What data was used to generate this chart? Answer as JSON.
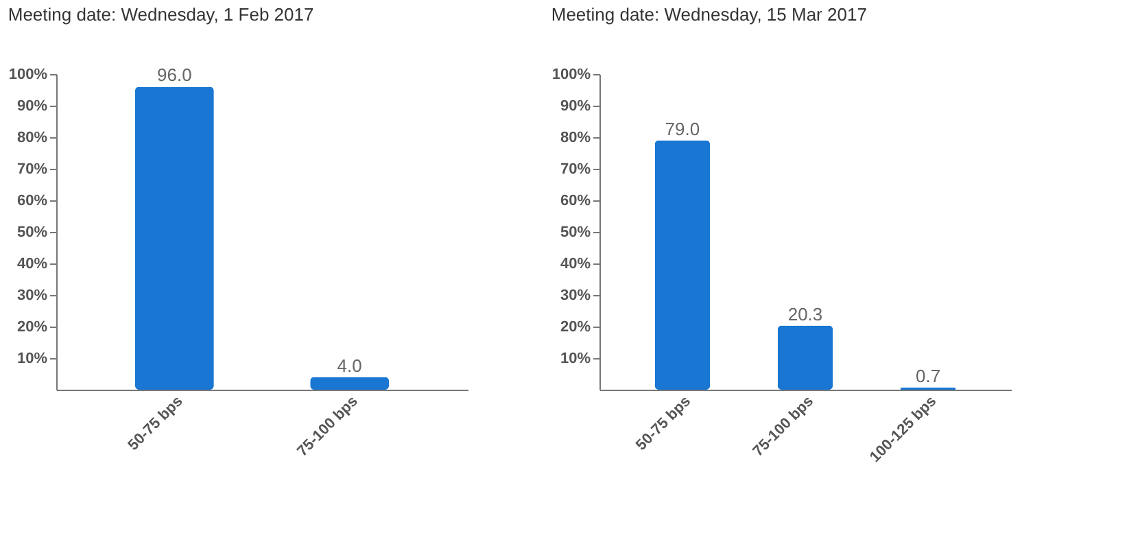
{
  "chart_data": [
    {
      "type": "bar",
      "title": "Meeting date: Wednesday, 1 Feb 2017",
      "categories": [
        "50-75 bps",
        "75-100 bps"
      ],
      "values": [
        96.0,
        4.0
      ],
      "value_labels": [
        "96.0",
        "4.0"
      ],
      "color": "#1976d2",
      "ylim": [
        0,
        100
      ],
      "yticks": [
        {
          "value": 10,
          "label": "10%"
        },
        {
          "value": 20,
          "label": "20%"
        },
        {
          "value": 30,
          "label": "30%"
        },
        {
          "value": 40,
          "label": "40%"
        },
        {
          "value": 50,
          "label": "50%"
        },
        {
          "value": 60,
          "label": "60%"
        },
        {
          "value": 70,
          "label": "70%"
        },
        {
          "value": 80,
          "label": "80%"
        },
        {
          "value": 90,
          "label": "90%"
        },
        {
          "value": 100,
          "label": "100%"
        }
      ],
      "grid": false
    },
    {
      "type": "bar",
      "title": "Meeting date: Wednesday, 15 Mar 2017",
      "categories": [
        "50-75 bps",
        "75-100 bps",
        "100-125 bps"
      ],
      "values": [
        79.0,
        20.3,
        0.7
      ],
      "value_labels": [
        "79.0",
        "20.3",
        "0.7"
      ],
      "color": "#1976d2",
      "ylim": [
        0,
        100
      ],
      "yticks": [
        {
          "value": 10,
          "label": "10%"
        },
        {
          "value": 20,
          "label": "20%"
        },
        {
          "value": 30,
          "label": "30%"
        },
        {
          "value": 40,
          "label": "40%"
        },
        {
          "value": 50,
          "label": "50%"
        },
        {
          "value": 60,
          "label": "60%"
        },
        {
          "value": 70,
          "label": "70%"
        },
        {
          "value": 80,
          "label": "80%"
        },
        {
          "value": 90,
          "label": "90%"
        },
        {
          "value": 100,
          "label": "100%"
        }
      ],
      "grid": false
    }
  ]
}
